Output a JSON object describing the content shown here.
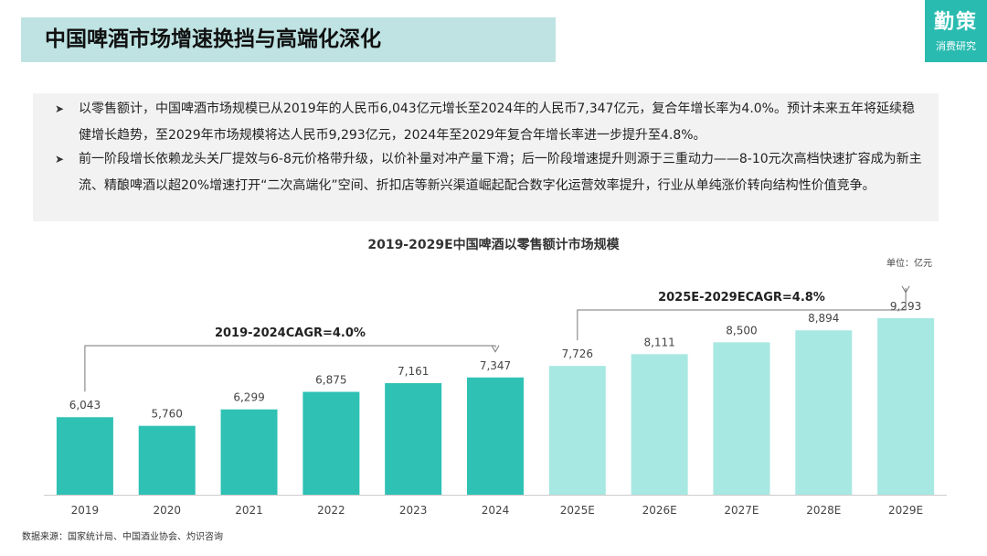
{
  "header": {
    "title": "中国啤酒市场增速换挡与高端化深化",
    "logo_main": "勤策",
    "logo_sub": "消费研究"
  },
  "summary": {
    "bullets": [
      "以零售额计，中国啤酒市场规模已从2019年的人民币6,043亿元增长至2024年的人民币7,347亿元，复合年增长率为4.0%。预计未来五年将延续稳健增长趋势，至2029年市场规模将达人民币9,293亿元，2024年至2029年复合年增长率进一步提升至4.8%。",
      "前一阶段增长依赖龙头关厂提效与6-8元价格带升级，以价补量对冲产量下滑；后一阶段增速提升则源于三重动力——8-10元次高档快速扩容成为新主流、精酿啤酒以超20%增速打开“二次高端化”空间、折扣店等新兴渠道崛起配合数字化运营效率提升，行业从单纯涨价转向结构性价值竞争。"
    ]
  },
  "chart_data": {
    "type": "bar",
    "title": "2019-2029E中国啤酒以零售额计市场规模",
    "unit": "单位：亿元",
    "categories": [
      "2019",
      "2020",
      "2021",
      "2022",
      "2023",
      "2024",
      "2025E",
      "2026E",
      "2027E",
      "2028E",
      "2029E"
    ],
    "values": [
      6043,
      5760,
      6299,
      6875,
      7161,
      7347,
      7726,
      8111,
      8500,
      8894,
      9293
    ],
    "value_labels": [
      "6,043",
      "5,760",
      "6,299",
      "6,875",
      "7,161",
      "7,347",
      "7,726",
      "8,111",
      "8,500",
      "8,894",
      "9,293"
    ],
    "forecast_from_index": 6,
    "ylim": [
      3500,
      9500
    ],
    "colors": {
      "actual": "#2ec1b4",
      "forecast": "#a8e8e2"
    },
    "annotations": [
      {
        "label": "2019-2024CAGR=4.0%",
        "from": 0,
        "to": 5
      },
      {
        "label": "2025E-2029ECAGR=4.8%",
        "from": 6,
        "to": 10
      }
    ]
  },
  "source": "数据来源：国家统计局、中国酒业协会、灼识咨询"
}
